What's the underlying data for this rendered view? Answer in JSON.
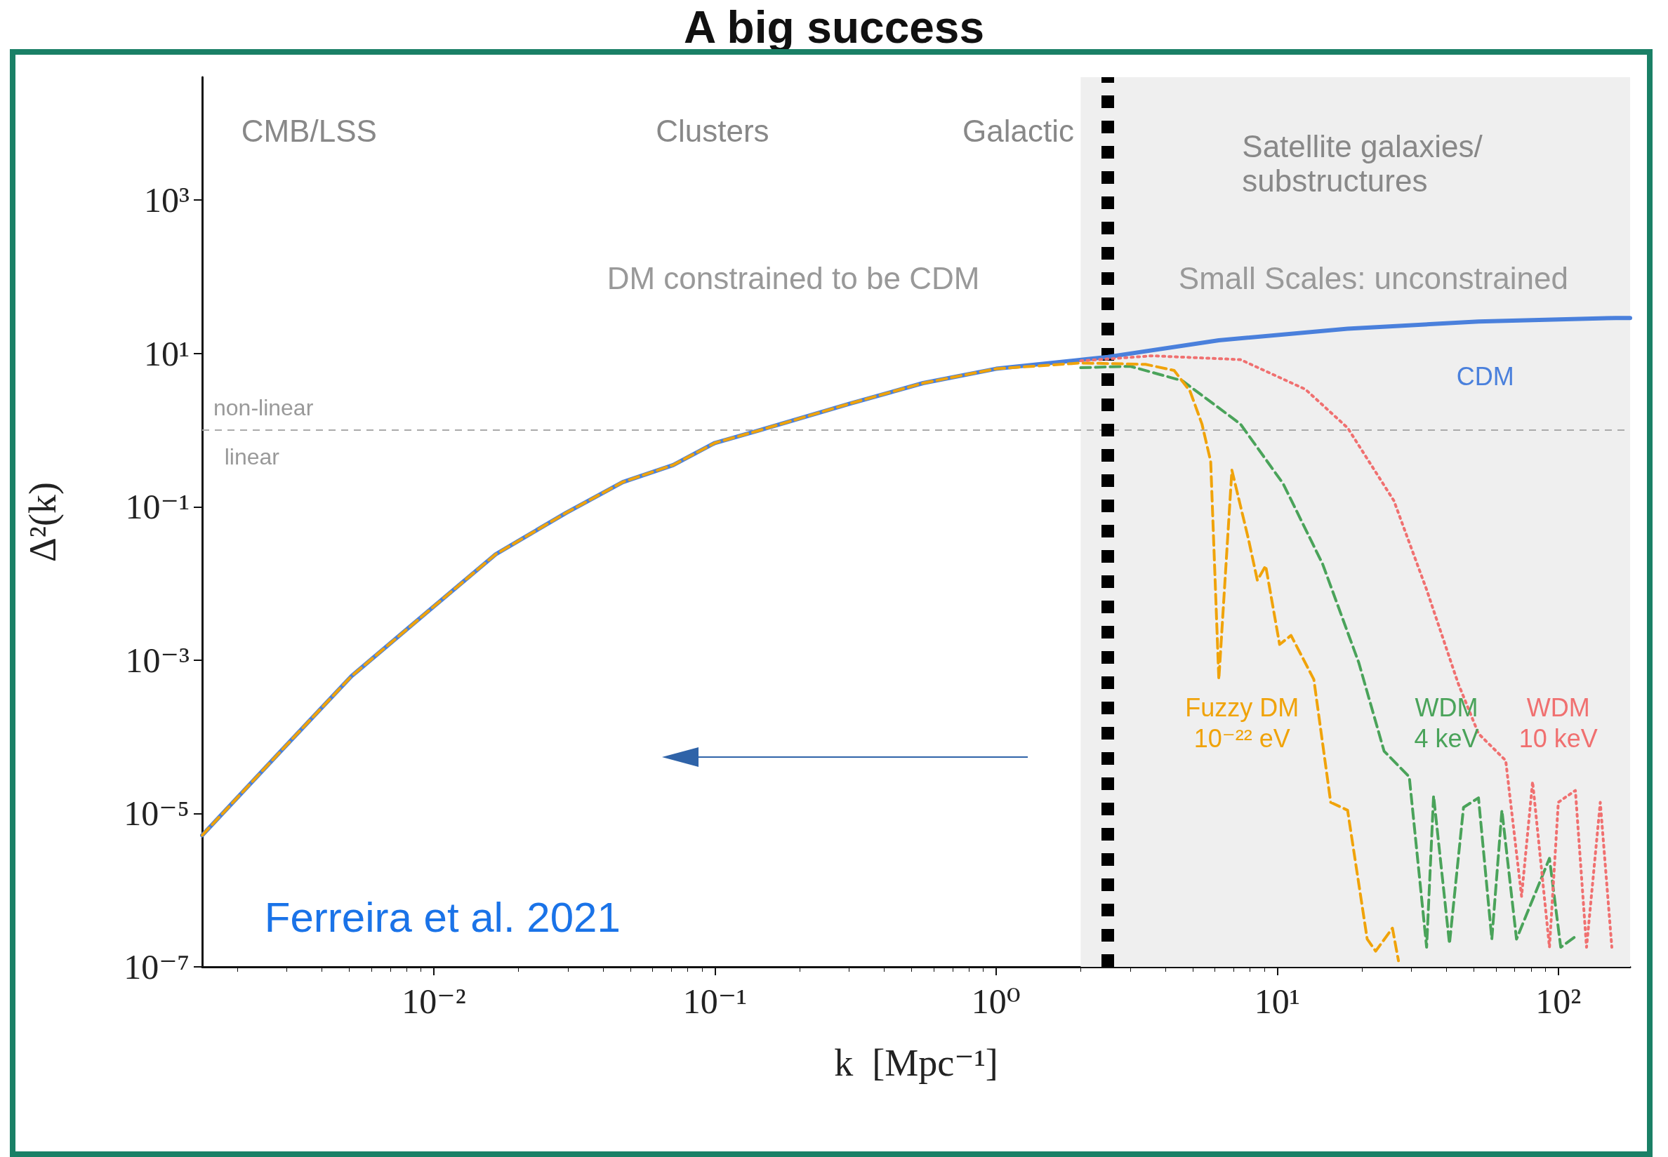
{
  "chart_data": {
    "type": "line",
    "title": "A big success",
    "xlabel": "k  [Mpc⁻¹]",
    "ylabel": "Δ²(k)",
    "log": "xy",
    "grid": false,
    "legend": false,
    "marker": "none",
    "xlim": [
      0.0015,
      180
    ],
    "ylim": [
      1e-07,
      40000
    ],
    "xticks": [
      {
        "value": 0.01,
        "label": "10⁻²"
      },
      {
        "value": 0.1,
        "label": "10⁻¹"
      },
      {
        "value": 1,
        "label": "10⁰"
      },
      {
        "value": 10,
        "label": "10¹"
      },
      {
        "value": 100,
        "label": "10²"
      }
    ],
    "yticks": [
      {
        "value": 1e-07,
        "label": "10⁻⁷"
      },
      {
        "value": 1e-05,
        "label": "10⁻⁵"
      },
      {
        "value": 0.001,
        "label": "10⁻³"
      },
      {
        "value": 0.1,
        "label": "10⁻¹"
      },
      {
        "value": 10,
        "label": "10¹"
      },
      {
        "value": 1000,
        "label": "10³"
      }
    ],
    "series": [
      {
        "name": "CDM",
        "color": "#4a80dc",
        "line_style": "solid",
        "x": [
          0.0015,
          0.0029,
          0.0051,
          0.0093,
          0.0166,
          0.0295,
          0.047,
          0.071,
          0.1,
          0.145,
          0.3,
          0.55,
          1.0,
          2.5,
          6.2,
          17.8,
          52,
          160,
          180
        ],
        "values": [
          5.2e-06,
          6.9e-05,
          0.00062,
          0.004,
          0.024,
          0.083,
          0.21,
          0.35,
          0.68,
          1.0,
          2.2,
          4.1,
          6.3,
          9,
          14.8,
          21,
          26,
          29,
          29
        ]
      },
      {
        "name": "Fuzzy DM 10⁻²² eV",
        "color": "#f0a30a",
        "line_style": "dashed",
        "x": [
          0.0015,
          0.0029,
          0.0051,
          0.0093,
          0.0166,
          0.0295,
          0.047,
          0.071,
          0.1,
          0.145,
          0.3,
          0.55,
          1.0,
          2.0,
          3.4,
          4.3,
          4.9,
          5.4,
          5.8,
          6.2,
          6.9,
          7.9,
          8.5,
          9.1,
          10.2,
          11.2,
          13.5,
          15.5,
          17.8,
          20.9,
          22.4,
          25.7,
          27
        ],
        "values": [
          5.2e-06,
          6.9e-05,
          0.00062,
          0.004,
          0.024,
          0.083,
          0.21,
          0.35,
          0.68,
          1.0,
          2.2,
          4.1,
          6.3,
          7.5,
          7.2,
          6,
          3.2,
          1.2,
          0.39,
          0.00056,
          0.3,
          0.038,
          0.011,
          0.017,
          0.0016,
          0.0021,
          0.00056,
          1.4e-05,
          1.1e-05,
          2.3e-07,
          1.6e-07,
          3.2e-07,
          1.2e-07
        ]
      },
      {
        "name": "WDM 4 keV",
        "color": "#4aa35a",
        "line_style": "dashed",
        "x": [
          2.0,
          3.0,
          4.6,
          7.4,
          10.5,
          14.5,
          19.5,
          24,
          29.5,
          34,
          36,
          41,
          46,
          52,
          58,
          63,
          71,
          93,
          102,
          117
        ],
        "values": [
          6.5,
          6.8,
          4.4,
          1.2,
          0.2,
          0.018,
          0.00093,
          6.5e-05,
          3e-05,
          1.8e-07,
          1.7e-05,
          2e-07,
          1.2e-05,
          1.6e-05,
          2.3e-07,
          1.1e-05,
          2.3e-07,
          2.6e-06,
          1.8e-07,
          2.6e-07
        ]
      },
      {
        "name": "WDM 10 keV",
        "color": "#f07070",
        "line_style": "dotted",
        "x": [
          2.0,
          3.6,
          7.4,
          12.6,
          17.8,
          26,
          34,
          44,
          52,
          65,
          74,
          81,
          93,
          100,
          115,
          126,
          141,
          155
        ],
        "values": [
          8,
          9.3,
          8.3,
          3.4,
          1.07,
          0.12,
          0.0083,
          0.0005,
          0.00011,
          4.9e-05,
          8.3e-07,
          2.6e-05,
          1.8e-07,
          1.4e-05,
          2e-05,
          1.8e-07,
          1.4e-05,
          1.8e-07
        ]
      }
    ],
    "ref_lines": [
      {
        "axis": "y",
        "value": 1,
        "label": "non-linear",
        "color": "#aaaaaa",
        "line_style": "dashed"
      },
      {
        "axis": "x",
        "value": 2.5,
        "color": "#000000",
        "line_style": "dotted"
      }
    ],
    "bands": [
      {
        "axis": "x",
        "from": 2,
        "to": 180,
        "color": "#efefef"
      }
    ],
    "annotations": [
      "CMB/LSS",
      "Clusters",
      "Galactic",
      "Satellite galaxies/\nsubstructures",
      "DM constrained to be CDM",
      "Small Scales: unconstrained",
      "Ferreira et al. 2021",
      "linear"
    ]
  }
}
